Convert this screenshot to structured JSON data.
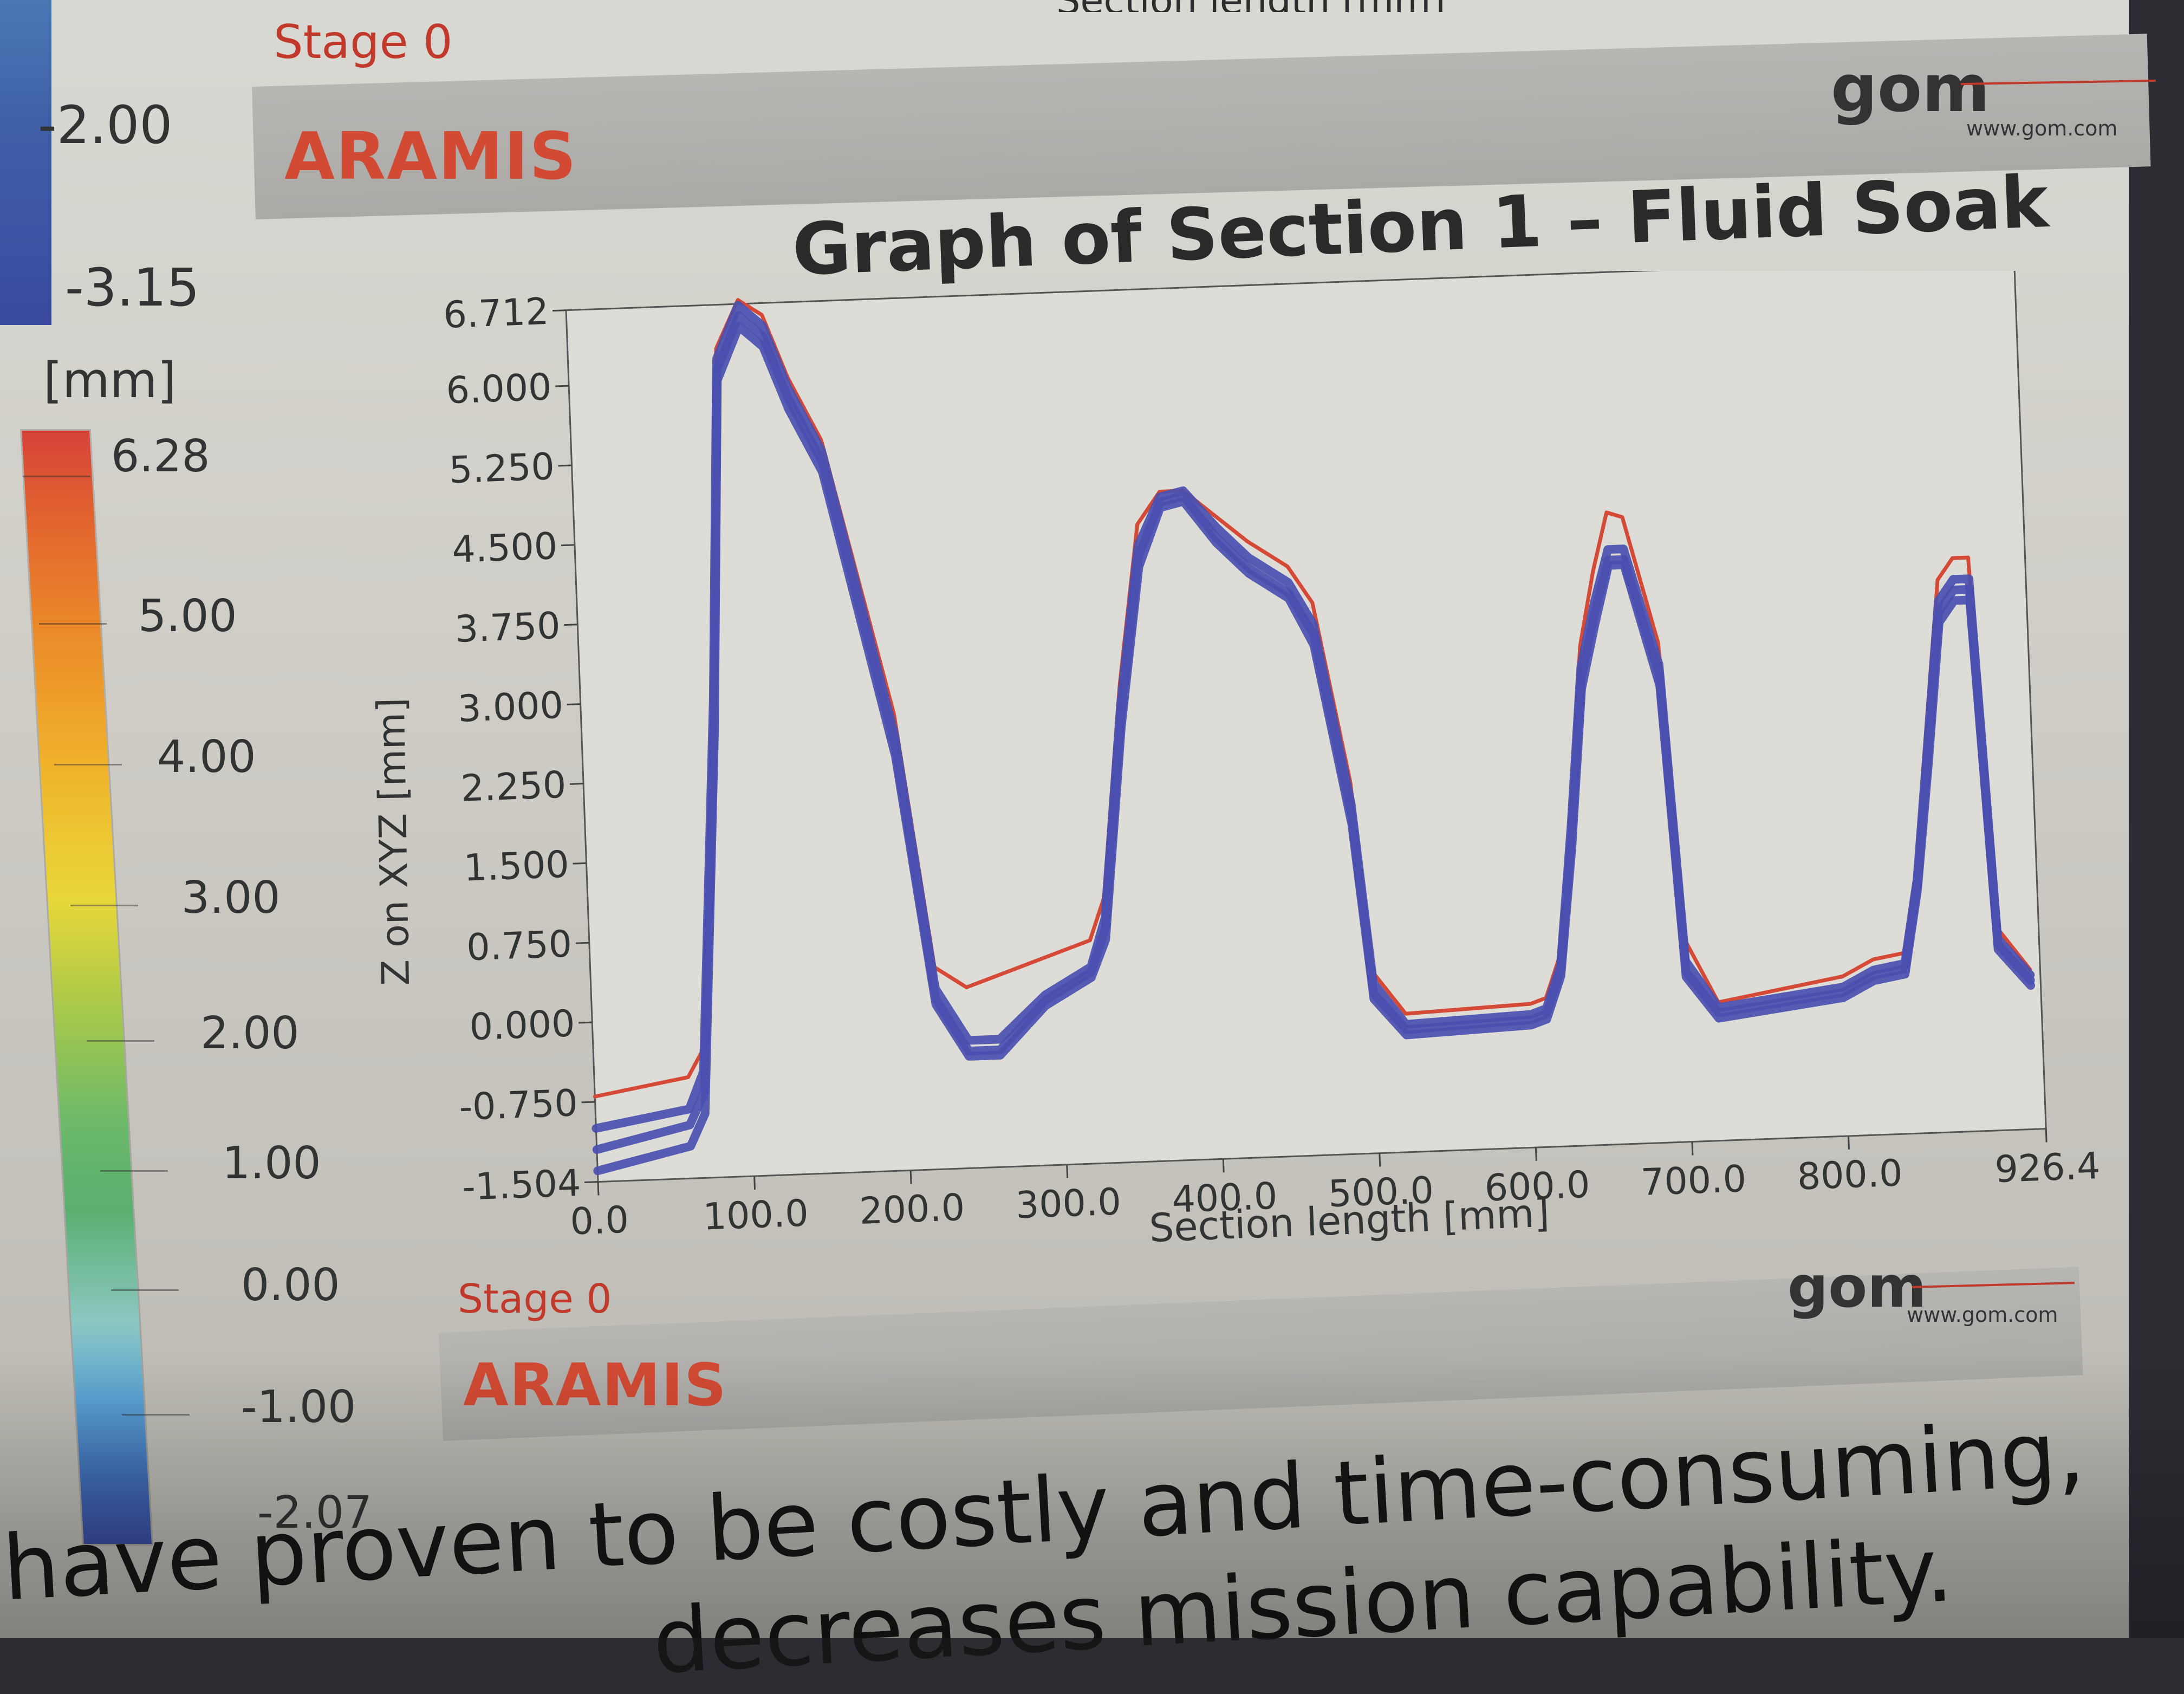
{
  "top_cut_label": "Section length [mm]",
  "old_scale": {
    "ticks": [
      "-2.00",
      "-3.15"
    ]
  },
  "legend": {
    "unit": "[mm]",
    "ticks": [
      "6.28",
      "5.00",
      "4.00",
      "3.00",
      "2.00",
      "1.00",
      "0.00",
      "-1.00",
      "-2.07"
    ]
  },
  "banner_top": {
    "stage": "Stage 0",
    "title": "ARAMIS",
    "logo": "gom",
    "url": "www.gom.com"
  },
  "banner_bottom": {
    "stage": "Stage 0",
    "title": "ARAMIS",
    "logo": "gom",
    "url": "www.gom.com"
  },
  "caption_lines": [
    "have proven to be costly and time-consuming,",
    "decreases mission capability."
  ],
  "colors": {
    "red": "#d44a36",
    "blue": "#4a4fb0",
    "banner_text": "#d24a33"
  },
  "chart_data": {
    "type": "line",
    "title": "Graph of Section 1 – Fluid Soak",
    "xlabel": "Section length [mm]",
    "ylabel": "Z on XYZ [mm]",
    "xlim": [
      0.0,
      926.4
    ],
    "ylim": [
      -1.504,
      6.712
    ],
    "x_ticks": [
      "0.0",
      "100.0",
      "200.0",
      "300.0",
      "400.0",
      "500.0",
      "600.0",
      "700.0",
      "800.0",
      "926.4"
    ],
    "y_ticks": [
      "6.712",
      "6.000",
      "5.250",
      "4.500",
      "3.750",
      "3.000",
      "2.250",
      "1.500",
      "0.750",
      "0.000",
      "-0.750",
      "-1.504"
    ],
    "grid": false,
    "series": [
      {
        "color": "#d44a36",
        "x": [
          0,
          60,
          70,
          85,
          95,
          110,
          125,
          140,
          160,
          200,
          220,
          240,
          260,
          290,
          320,
          330,
          345,
          360,
          375,
          390,
          410,
          430,
          455,
          470,
          490,
          500,
          520,
          600,
          610,
          620,
          630,
          640,
          650,
          660,
          670,
          690,
          700,
          720,
          800,
          820,
          840,
          850,
          860,
          870,
          880,
          890,
          900,
          920
        ],
        "y": [
          -0.7,
          -0.55,
          -0.3,
          3,
          6.3,
          6.75,
          6.6,
          6,
          5.4,
          2.8,
          0.4,
          0.2,
          0.3,
          0.45,
          0.6,
          1,
          3,
          4.5,
          4.8,
          4.8,
          4.55,
          4.3,
          4.05,
          3.7,
          2,
          0.2,
          -0.2,
          -0.15,
          -0.1,
          0.3,
          1.6,
          3.2,
          3.9,
          4.45,
          4.4,
          3.2,
          0.4,
          -0.2,
          0,
          0.15,
          0.2,
          1,
          2.4,
          3.7,
          3.9,
          3.9,
          0.4,
          0
        ]
      },
      {
        "color": "#4a4fb0",
        "x": [
          0,
          60,
          70,
          85,
          95,
          110,
          125,
          140,
          160,
          200,
          220,
          240,
          260,
          290,
          320,
          330,
          345,
          360,
          375,
          390,
          410,
          430,
          455,
          470,
          490,
          500,
          520,
          600,
          610,
          620,
          630,
          640,
          650,
          660,
          670,
          690,
          700,
          720,
          800,
          820,
          840,
          850,
          860,
          870,
          880,
          890,
          900,
          920
        ],
        "y": [
          -1.0,
          -0.85,
          -0.5,
          3,
          6.2,
          6.7,
          6.5,
          5.9,
          5.3,
          2.6,
          0.2,
          -0.3,
          -0.3,
          0.1,
          0.35,
          0.8,
          2.8,
          4.3,
          4.75,
          4.8,
          4.45,
          4.15,
          3.9,
          3.5,
          1.8,
          0.1,
          -0.3,
          -0.25,
          -0.2,
          0.2,
          1.5,
          3,
          3.6,
          4.1,
          4.1,
          3,
          0.2,
          -0.25,
          -0.1,
          0.05,
          0.1,
          0.9,
          2.2,
          3.5,
          3.7,
          3.7,
          0.3,
          -0.05
        ]
      },
      {
        "color": "#4a4fb0",
        "x": [
          0,
          60,
          70,
          85,
          95,
          110,
          125,
          140,
          160,
          200,
          220,
          240,
          260,
          290,
          320,
          330,
          345,
          360,
          375,
          390,
          410,
          430,
          455,
          470,
          490,
          500,
          520,
          600,
          610,
          620,
          630,
          640,
          650,
          660,
          670,
          690,
          700,
          720,
          800,
          820,
          840,
          850,
          860,
          870,
          880,
          890,
          900,
          920
        ],
        "y": [
          -1.2,
          -1.0,
          -0.7,
          2.8,
          6.1,
          6.6,
          6.4,
          5.8,
          5.2,
          2.5,
          0.1,
          -0.4,
          -0.4,
          0.05,
          0.3,
          0.7,
          2.7,
          4.2,
          4.7,
          4.75,
          4.35,
          4.05,
          3.8,
          3.4,
          1.7,
          0,
          -0.35,
          -0.3,
          -0.25,
          0.15,
          1.4,
          2.9,
          3.5,
          4.0,
          4.0,
          2.9,
          0.1,
          -0.3,
          -0.15,
          0,
          0.05,
          0.85,
          2.1,
          3.4,
          3.6,
          3.6,
          0.25,
          -0.1
        ]
      },
      {
        "color": "#4a4fb0",
        "x": [
          0,
          60,
          70,
          85,
          95,
          110,
          125,
          140,
          160,
          200,
          220,
          240,
          260,
          290,
          320,
          330,
          345,
          360,
          375,
          390,
          410,
          430,
          455,
          470,
          490,
          500,
          520,
          600,
          610,
          620,
          630,
          640,
          650,
          660,
          670,
          690,
          700,
          720,
          800,
          820,
          840,
          850,
          860,
          870,
          880,
          890,
          900,
          920
        ],
        "y": [
          -1.4,
          -1.2,
          -0.9,
          2.7,
          6.0,
          6.5,
          6.3,
          5.7,
          5.1,
          2.4,
          0.05,
          -0.45,
          -0.45,
          0,
          0.25,
          0.6,
          2.6,
          4.1,
          4.65,
          4.7,
          4.3,
          4.0,
          3.75,
          3.3,
          1.6,
          -0.05,
          -0.4,
          -0.35,
          -0.3,
          0.1,
          1.3,
          2.8,
          3.4,
          3.95,
          3.95,
          2.8,
          0.05,
          -0.35,
          -0.2,
          -0.05,
          0,
          0.8,
          2.0,
          3.3,
          3.5,
          3.5,
          0.2,
          -0.15
        ]
      }
    ]
  }
}
